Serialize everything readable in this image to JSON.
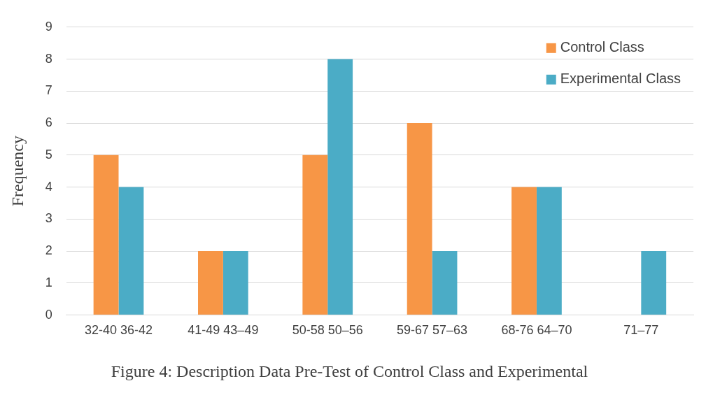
{
  "chart_data": {
    "type": "bar",
    "title": "Figure 4: Description Data Pre-Test of Control Class and Experimental",
    "ylabel": "Frequency",
    "categories": [
      "32-40 36-42",
      "41-49 43–49",
      "50-58 50–56",
      "59-67 57–63",
      "68-76 64–70",
      "71–77"
    ],
    "series": [
      {
        "name": "Control Class",
        "color": "#f79646",
        "values": [
          5,
          2,
          5,
          6,
          4,
          null
        ]
      },
      {
        "name": "Experimental Class",
        "color": "#4bacc6",
        "values": [
          4,
          2,
          8,
          2,
          4,
          2
        ]
      }
    ],
    "ylim": [
      0,
      9
    ],
    "yticks": [
      0,
      1,
      2,
      3,
      4,
      5,
      6,
      7,
      8,
      9
    ],
    "grid": "y",
    "legend": "top right"
  }
}
